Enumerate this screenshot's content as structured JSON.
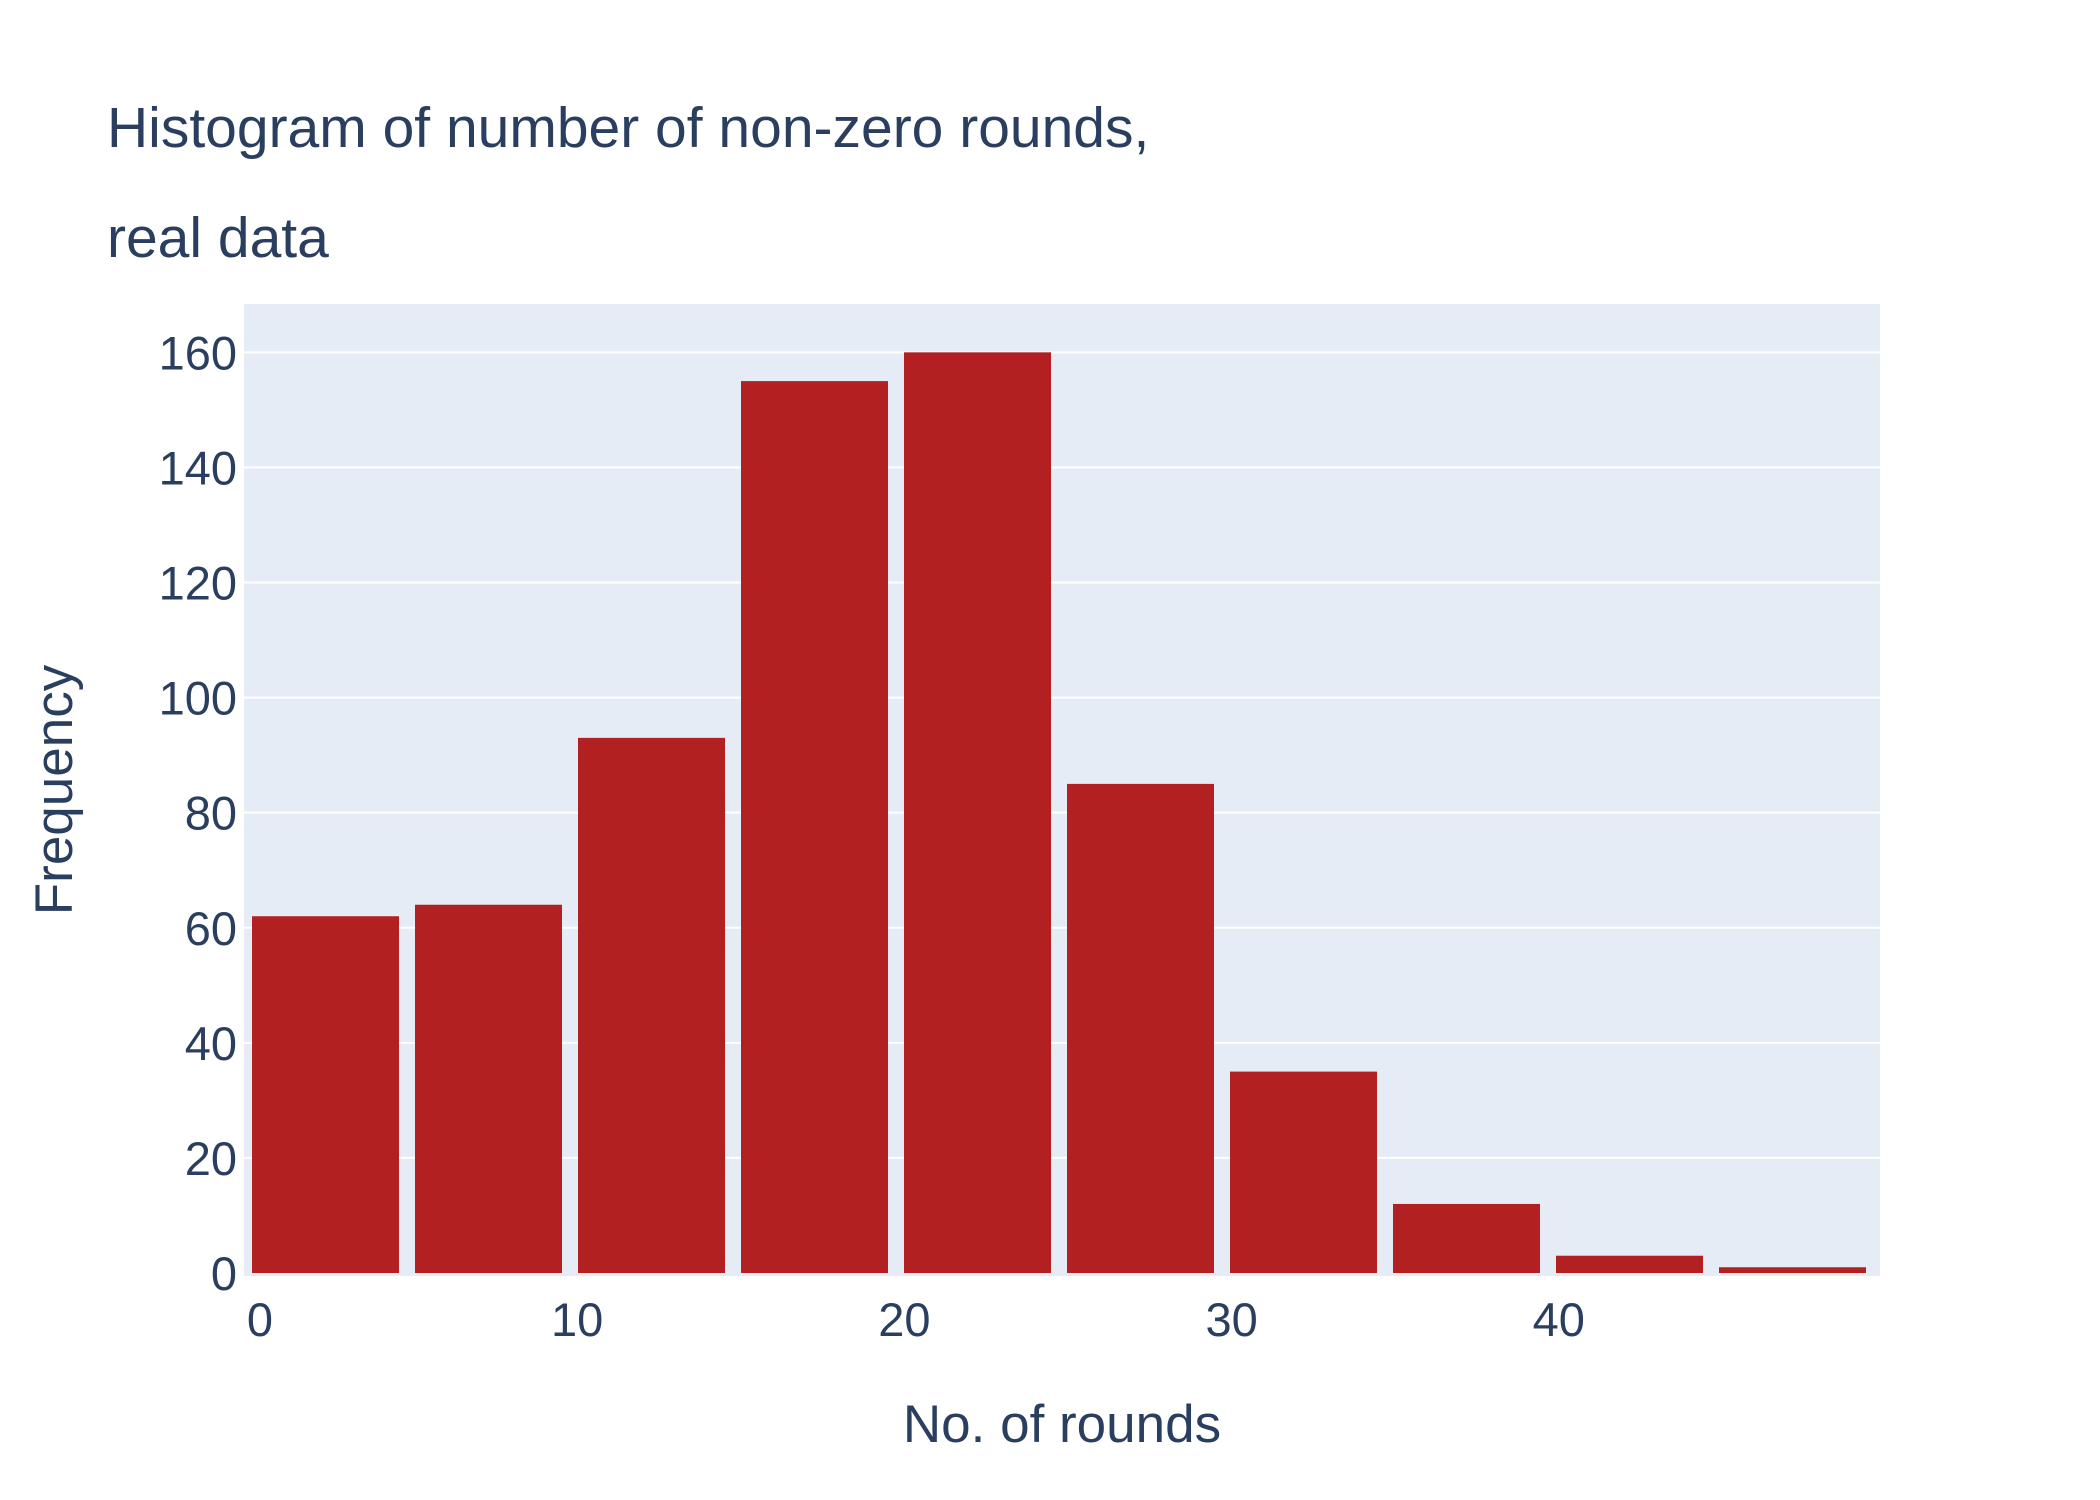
{
  "chart_data": {
    "type": "bar",
    "title_lines": [
      "Histogram of number of non-zero rounds,",
      "real data"
    ],
    "xlabel": "No. of rounds",
    "ylabel": "Frequency",
    "bins": [
      {
        "start": 0,
        "end": 5,
        "value": 62
      },
      {
        "start": 5,
        "end": 10,
        "value": 64
      },
      {
        "start": 10,
        "end": 15,
        "value": 93
      },
      {
        "start": 15,
        "end": 20,
        "value": 155
      },
      {
        "start": 20,
        "end": 25,
        "value": 160
      },
      {
        "start": 25,
        "end": 30,
        "value": 85
      },
      {
        "start": 30,
        "end": 35,
        "value": 35
      },
      {
        "start": 35,
        "end": 40,
        "value": 12
      },
      {
        "start": 40,
        "end": 45,
        "value": 3
      },
      {
        "start": 45,
        "end": 50,
        "value": 1
      }
    ],
    "xlim": [
      0,
      50
    ],
    "ylim": [
      0,
      168.4
    ],
    "xticks": [
      0,
      10,
      20,
      30,
      40
    ],
    "yticks": [
      0,
      20,
      40,
      60,
      80,
      100,
      120,
      140,
      160
    ],
    "grid": true,
    "legend": false,
    "colors": {
      "bar": "#b22022",
      "plot_bg": "#e5ecf6",
      "grid": "#ffffff",
      "text": "#2a3f5f"
    }
  }
}
